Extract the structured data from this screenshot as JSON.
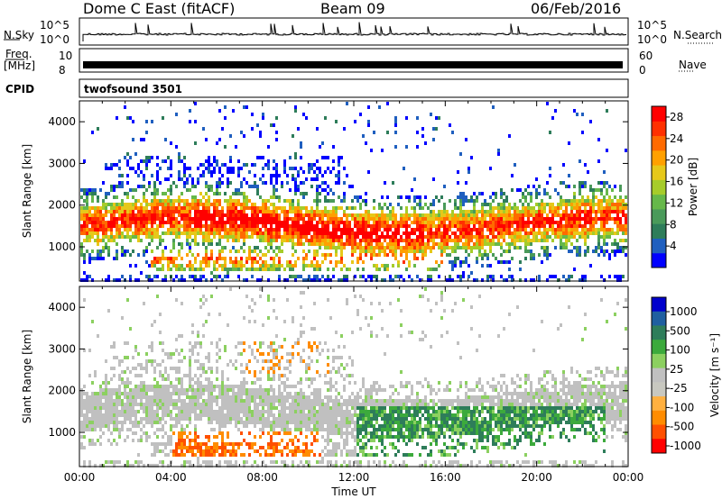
{
  "header": {
    "station": "Dome C East (fitACF)",
    "beam": "Beam 09",
    "date": "06/Feb/2016"
  },
  "status_panels": {
    "nsky_label": "N.Sky",
    "nsky_top": "10^5",
    "nsky_bottom": "10^0",
    "nsearch_label": "N.Search",
    "nsearch_top": "10^5",
    "nsearch_bottom": "10^0",
    "freq_label_1": "Freq.",
    "freq_label_2": "[MHz]",
    "freq_top": "10",
    "freq_bottom": "8",
    "nave_label": "Nave",
    "nave_top": "60",
    "nave_bottom": "0",
    "cpid_label": "CPID",
    "cpid_value": "twofsound 3501"
  },
  "colors": {
    "power_scale": [
      "#0000ff",
      "#1f5fbf",
      "#2e7d5a",
      "#4a9a5a",
      "#66b84a",
      "#a6cc2a",
      "#e6c81a",
      "#ffa000",
      "#ff6a00",
      "#ff3000",
      "#ff0000"
    ],
    "velocity_scale": [
      "#ff0000",
      "#ff5000",
      "#ff8c00",
      "#ffb040",
      "#c8c8c0",
      "#c0c0c0",
      "#8cd060",
      "#3caa3c",
      "#2e7d5a",
      "#1f5fa0",
      "#0000cc"
    ]
  },
  "chart_data": [
    {
      "type": "heatmap",
      "name": "power",
      "xlabel": "",
      "ylabel": "Slant Range [km]",
      "x_ticks": [
        "00:00",
        "04:00",
        "08:00",
        "12:00",
        "16:00",
        "20:00",
        "00:00"
      ],
      "y_ticks": [
        1000,
        2000,
        3000,
        4000
      ],
      "ylim": [
        180,
        4500
      ],
      "colorbar_label": "Power [dB]",
      "colorbar_ticks": [
        4,
        8,
        12,
        16,
        20,
        24,
        28
      ],
      "colorbar_range": [
        0,
        30
      ],
      "description_of_data": "Echo band centred near 1500 km range, strongest (24-30 dB) between 05:00 and 15:00 UT"
    },
    {
      "type": "heatmap",
      "name": "velocity",
      "xlabel": "Time UT",
      "ylabel": "Slant Range [km]",
      "x_ticks": [
        "00:00",
        "04:00",
        "08:00",
        "12:00",
        "16:00",
        "20:00",
        "00:00"
      ],
      "y_ticks": [
        1000,
        2000,
        3000,
        4000
      ],
      "ylim": [
        180,
        4500
      ],
      "colorbar_label": "Velocity [m s⁻¹]",
      "colorbar_ticks": [
        "1000",
        "500",
        "100",
        "25",
        "-25",
        "-100",
        "-500",
        "-1000"
      ],
      "description_of_data": "Mostly low-velocity (grey) scatter near 1500 km; negative (orange) flows near 1000 km 04:00-10:00 UT; positive (green) flows 12:00-23:00 UT"
    }
  ]
}
